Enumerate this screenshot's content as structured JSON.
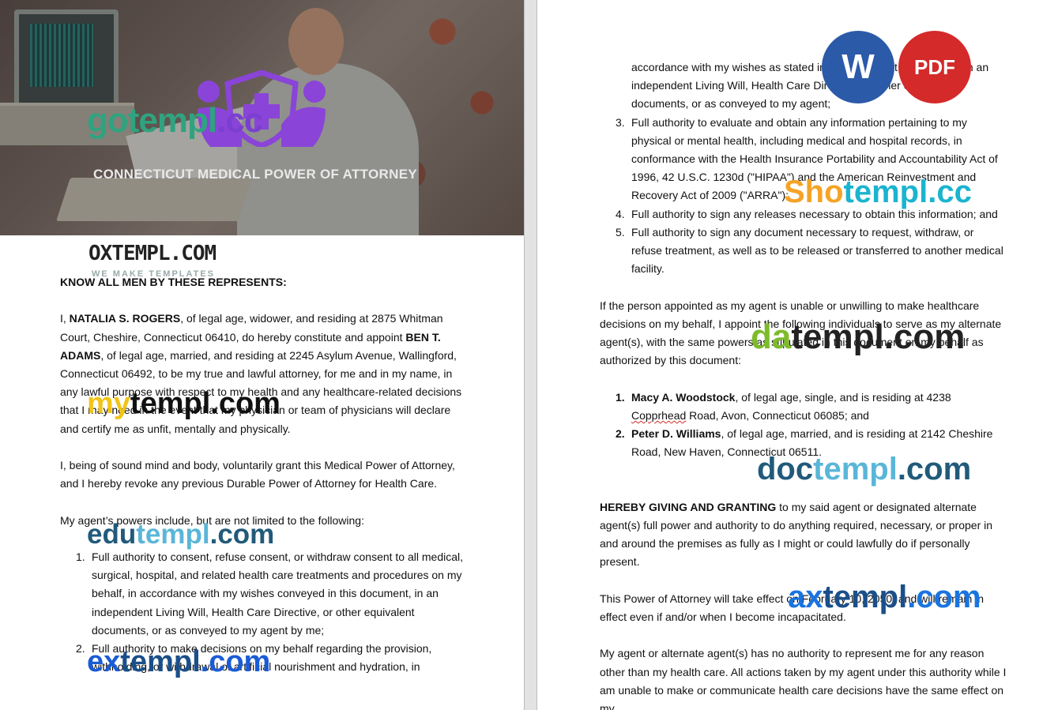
{
  "header": {
    "title": "CONNECTICUT MEDICAL POWER OF ATTORNEY"
  },
  "watermarks": {
    "gotempl": {
      "main": "gotempl",
      "accent": ".cc"
    },
    "oxtempl": {
      "main": "OXTEMPL.COM",
      "sub": "WE MAKE TEMPLATES"
    },
    "mytempl": {
      "pre": "my",
      "main": "templ.com"
    },
    "edutempl": {
      "pre": "edu",
      "main": "templ",
      "post": ".com"
    },
    "extempl": {
      "pre": "ex",
      "main": "templ",
      "post": ".com"
    },
    "shotempl": {
      "pre": "Sho",
      "main": "templ.cc"
    },
    "datempl": {
      "pre": "da",
      "main": "templ.com"
    },
    "doctempl": {
      "pre": "doc",
      "main": "templ",
      "post": ".com"
    },
    "axtempl": {
      "pre": "ax",
      "main": "templ",
      "post": ".com"
    }
  },
  "badges": {
    "word": "W",
    "pdf": "PDF"
  },
  "left": {
    "heading": "KNOW ALL MEN BY THESE REPRESENTS:",
    "p1": {
      "a": "I, ",
      "name1": "NATALIA S. ROGERS",
      "b": ", of legal age, widower, and residing at 2875 Whitman Court, Cheshire, Connecticut 06410, do hereby constitute and appoint ",
      "name2": "BEN T. ADAMS",
      "c": ", of legal age, married, and residing at 2245 Asylum Avenue, Wallingford, Connecticut 06492, to be my true and lawful attorney, for me and in my name, in any lawful purpose with respect to my health and any healthcare-related decisions that I may need in the event that my physician or team of physicians will declare and certify me as unfit, mentally and physically."
    },
    "p2": "I, being of sound mind and body, voluntarily grant this Medical Power of Attorney, and I hereby revoke any previous Durable Power of Attorney for Health Care.",
    "p3": "My agent’s powers include, but are not limited to the following:",
    "list": [
      {
        "num": "1.",
        "text": "Full authority to consent, refuse consent, or withdraw consent to all medical, surgical, hospital, and related health care treatments and procedures on my behalf, in accordance with my wishes conveyed in this document, in an independent Living Will, Health Care Directive, or other equivalent documents, or as conveyed to my agent by me;"
      },
      {
        "num": "2.",
        "text": "Full authority to make decisions on my behalf regarding the provision, withholding, or withdrawal of artificial nourishment and hydration, in"
      }
    ]
  },
  "right": {
    "continuation": "accordance with my wishes as stated in this document, or as stated in an independent Living Will, Health Care Directive, or other equivalent documents, or as conveyed to my agent;",
    "list": [
      {
        "num": "3.",
        "text": "Full authority to evaluate and obtain any information pertaining to my physical or mental health, including medical and hospital records, in conformance with the Health Insurance Portability and Accountability Act of 1996, 42 U.S.C. 1230d (\"HIPAA\") and the American Reinvestment and Recovery Act of 2009 (\"ARRA\");"
      },
      {
        "num": "4.",
        "text": "Full authority to sign any releases necessary to obtain this information; and"
      },
      {
        "num": "5.",
        "text": "Full authority to sign any document necessary to request, withdraw, or refuse treatment, as well as to be released or transferred to another medical facility."
      }
    ],
    "p_alt": "If the person appointed as my agent is unable or unwilling to make healthcare decisions on my behalf, I appoint the following individuals to serve as my alternate agent(s), with the same powers as stipulated in this document on my behalf as authorized by this document:",
    "alternates": [
      {
        "num": "1.",
        "name": "Macy A. Woodstock",
        "text": ", of legal age, single, and is residing at 4238 ",
        "street": "Copprhead",
        "text2": " Road, Avon, Connecticut 06085; and"
      },
      {
        "num": "2.",
        "name": "Peter D. Williams",
        "text": ", of legal age, married, and is residing at 2142 Cheshire Road, New Haven, Connecticut 06511."
      }
    ],
    "p_grant": {
      "bold": "HEREBY GIVING AND GRANTING",
      "text": " to my said agent or designated alternate agent(s) full power and authority to do anything required, necessary, or proper in and around the premises as fully as I might or could lawfully do if personally present."
    },
    "p_effect": "This Power of Attorney will take effect on February 10, 2050, and will remain in effect even if and/or when I become incapacitated.",
    "p_last": "My agent or alternate agent(s) has no authority to represent me for any reason other than my health care. All actions taken by my agent under this authority while I am unable to make or communicate health care decisions have the same effect on my"
  }
}
